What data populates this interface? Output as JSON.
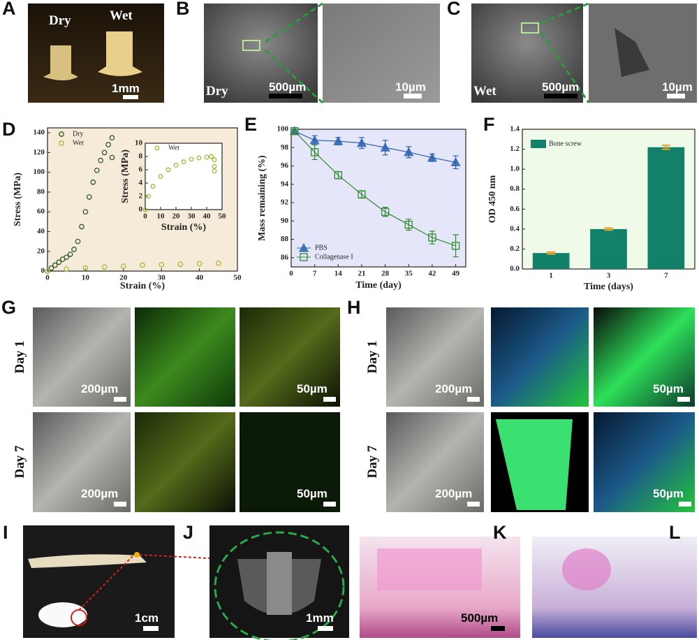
{
  "panels": {
    "A": {
      "letter": "A",
      "dry": "Dry",
      "wet": "Wet",
      "scale": "1mm"
    },
    "B": {
      "letter": "B",
      "label": "Dry",
      "scale": "500µm",
      "zoom_scale": "10µm"
    },
    "C": {
      "letter": "C",
      "label": "Wet",
      "scale": "500µm",
      "zoom_scale": "10µm"
    },
    "D": {
      "letter": "D"
    },
    "E": {
      "letter": "E"
    },
    "F": {
      "letter": "F"
    },
    "G": {
      "letter": "G",
      "rows": [
        "Day 1",
        "Day 7"
      ],
      "scales": [
        "200µm",
        "50µm",
        "200µm",
        "50µm"
      ]
    },
    "H": {
      "letter": "H",
      "rows": [
        "Day 1",
        "Day 7"
      ],
      "scales": [
        "200µm",
        "50µm",
        "200µm",
        "50µm"
      ]
    },
    "I": {
      "letter": "I",
      "scale": "1cm"
    },
    "J": {
      "letter": "J",
      "scale": "1mm"
    },
    "K": {
      "letter": "K",
      "scale": "500µm"
    },
    "L": {
      "letter": "L"
    }
  },
  "chart_data": [
    {
      "type": "scatter",
      "xlabel": "Strain (%)",
      "ylabel": "Stress (MPa)",
      "xlim": [
        0,
        50
      ],
      "xticks": [
        0,
        10,
        20,
        30,
        40,
        50
      ],
      "ylim": [
        0,
        145
      ],
      "yticks": [
        0,
        20,
        40,
        60,
        80,
        100,
        120,
        140
      ],
      "legend": "upper left",
      "series": [
        {
          "name": "Dry",
          "color": "#2f5a2a",
          "marker": "circle",
          "x": [
            0,
            1,
            2,
            3,
            4,
            5,
            6,
            7,
            8,
            9,
            10,
            11,
            12,
            13,
            14,
            15,
            16,
            17,
            17
          ],
          "values": [
            0,
            3,
            6,
            9,
            12,
            14,
            17,
            22,
            30,
            45,
            60,
            75,
            90,
            102,
            112,
            120,
            128,
            135,
            115
          ]
        },
        {
          "name": "Wet",
          "color": "#9cbc3a",
          "marker": "circle",
          "x": [
            0,
            5,
            10,
            15,
            20,
            25,
            30,
            35,
            40,
            45
          ],
          "values": [
            0,
            2,
            3,
            4,
            5,
            6,
            6.5,
            7,
            7.5,
            8
          ]
        }
      ]
    },
    {
      "type": "scatter",
      "xlabel": "Strain (%)",
      "ylabel": "Stress (MPa)",
      "xlim": [
        0,
        50
      ],
      "xticks": [
        0,
        10,
        20,
        30,
        40,
        50
      ],
      "ylim": [
        0,
        10
      ],
      "yticks": [
        0,
        2,
        4,
        6,
        8,
        10
      ],
      "legend": "upper left",
      "series": [
        {
          "name": "Wet",
          "color": "#9cbc3a",
          "marker": "circle",
          "x": [
            0,
            2,
            5,
            10,
            15,
            20,
            25,
            30,
            35,
            40,
            43,
            45,
            45,
            45
          ],
          "values": [
            0,
            2,
            3.5,
            5,
            6,
            6.7,
            7.2,
            7.6,
            7.8,
            7.9,
            8,
            7.5,
            6.5,
            5.8
          ]
        }
      ]
    },
    {
      "type": "line",
      "xlabel": "Time (day)",
      "ylabel": "Mass remaining (%)",
      "x": [
        1,
        7,
        14,
        21,
        28,
        35,
        42,
        49
      ],
      "xlim": [
        0,
        52
      ],
      "xticks": [
        0,
        7,
        14,
        21,
        28,
        35,
        42,
        49
      ],
      "ylim": [
        85,
        100
      ],
      "yticks": [
        86,
        88,
        90,
        92,
        94,
        96,
        98,
        100
      ],
      "legend": "lower left",
      "series": [
        {
          "name": "PBS",
          "color": "#2a62b0",
          "marker": "triangle",
          "values": [
            99.8,
            98.8,
            98.7,
            98.5,
            98,
            97.5,
            96.9,
            96.4
          ],
          "errors": [
            0.2,
            0.5,
            0.4,
            0.6,
            0.8,
            0.6,
            0.4,
            0.7
          ]
        },
        {
          "name": "Collagenase I",
          "color": "#2e8b2e",
          "marker": "square",
          "values": [
            99.8,
            97.5,
            95,
            92.9,
            91,
            89.6,
            88.2,
            87.3
          ],
          "errors": [
            0.2,
            0.8,
            0.4,
            0.4,
            0.5,
            0.6,
            0.7,
            1.2
          ]
        }
      ]
    },
    {
      "type": "bar",
      "xlabel": "Time (days)",
      "ylabel": "OD  450 nm",
      "categories": [
        "1",
        "3",
        "7"
      ],
      "ylim": [
        0,
        1.4
      ],
      "yticks": [
        {
          "value": 0,
          "label": "0.0"
        },
        0.2,
        0.4,
        0.6,
        0.8,
        {
          "value": 1,
          "label": "1.0"
        },
        1.2,
        1.4
      ],
      "legend": "upper left",
      "error_color": "#e8a020",
      "series": [
        {
          "name": "Bone screw",
          "color": "#13806a",
          "values": [
            0.16,
            0.4,
            1.22
          ],
          "errors": [
            0.01,
            0.01,
            0.02
          ]
        }
      ]
    }
  ]
}
